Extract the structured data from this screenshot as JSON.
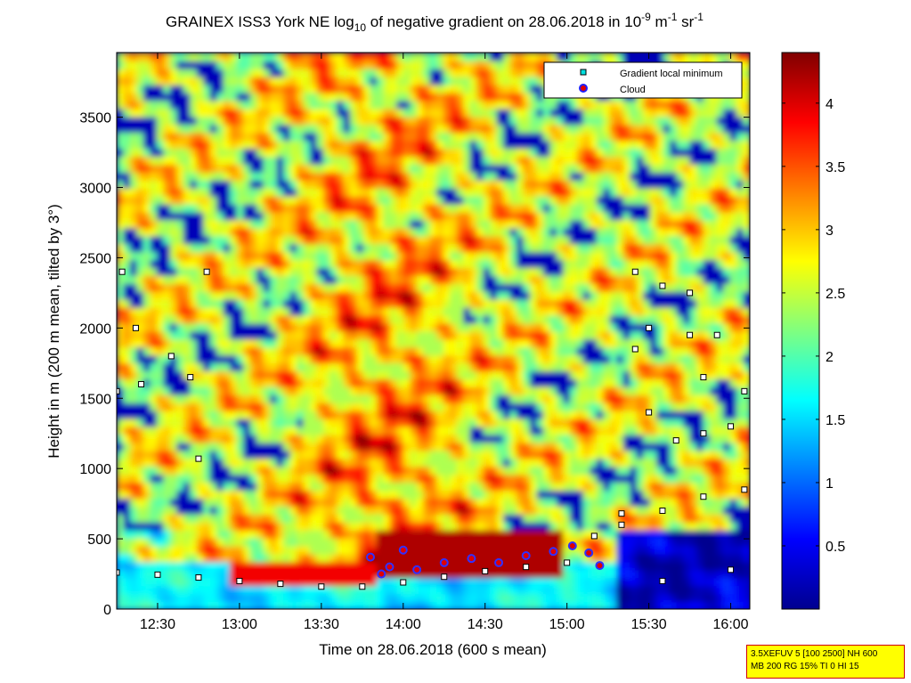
{
  "chart_data": {
    "type": "heatmap",
    "title": "GRAINEX ISS3 York NE log",
    "title_sub": "10",
    "title_mid": " of negative gradient on 28.06.2018 in 10",
    "title_exp1": "-9",
    "title_unit1": " m",
    "title_exp2": "-1",
    "title_unit2": " sr",
    "title_exp3": "-1",
    "xlabel": "Time on 28.06.2018 (600 s mean)",
    "ylabel": "Height in m (200 m mean, tilted by 3°)",
    "x_range": [
      "12:15",
      "16:07"
    ],
    "y_range": [
      0,
      3960
    ],
    "x_ticks": [
      "12:30",
      "13:00",
      "13:30",
      "14:00",
      "14:30",
      "15:00",
      "15:30",
      "16:00"
    ],
    "y_ticks": [
      0,
      500,
      1000,
      1500,
      2000,
      2500,
      3000,
      3500
    ],
    "colorbar": {
      "min": 0,
      "max": 4.4,
      "ticks": [
        0.5,
        1,
        1.5,
        2,
        2.5,
        3,
        3.5,
        4
      ]
    },
    "legend": {
      "placement": "top-right",
      "entries": [
        "Gradient local minimum",
        "Cloud"
      ]
    },
    "series": [
      {
        "name": "Gradient local minimum",
        "points": [
          [
            "12:15",
            260
          ],
          [
            "12:30",
            245
          ],
          [
            "12:45",
            225
          ],
          [
            "13:00",
            200
          ],
          [
            "13:15",
            180
          ],
          [
            "13:30",
            160
          ],
          [
            "13:45",
            160
          ],
          [
            "14:00",
            190
          ],
          [
            "14:15",
            230
          ],
          [
            "14:30",
            270
          ],
          [
            "14:45",
            300
          ],
          [
            "15:00",
            330
          ],
          [
            "15:10",
            520
          ],
          [
            "15:20",
            600
          ],
          [
            "15:35",
            700
          ],
          [
            "15:50",
            800
          ],
          [
            "16:05",
            850
          ],
          [
            "12:17",
            2400
          ],
          [
            "12:22",
            2000
          ],
          [
            "12:24",
            1600
          ],
          [
            "12:15",
            1550
          ],
          [
            "12:35",
            1800
          ],
          [
            "12:42",
            1650
          ],
          [
            "12:48",
            2400
          ],
          [
            "12:45",
            1070
          ],
          [
            "15:25",
            2400
          ],
          [
            "15:35",
            2300
          ],
          [
            "15:45",
            2250
          ],
          [
            "15:30",
            2000
          ],
          [
            "15:45",
            1950
          ],
          [
            "15:55",
            1950
          ],
          [
            "15:25",
            1850
          ],
          [
            "15:50",
            1650
          ],
          [
            "16:05",
            1550
          ],
          [
            "15:30",
            1400
          ],
          [
            "15:40",
            1200
          ],
          [
            "15:50",
            1250
          ],
          [
            "16:00",
            1300
          ],
          [
            "15:20",
            680
          ],
          [
            "15:35",
            200
          ],
          [
            "16:00",
            280
          ]
        ]
      },
      {
        "name": "Cloud",
        "points": [
          [
            "13:48",
            370
          ],
          [
            "13:52",
            250
          ],
          [
            "13:55",
            300
          ],
          [
            "14:00",
            420
          ],
          [
            "14:05",
            280
          ],
          [
            "14:15",
            330
          ],
          [
            "14:25",
            360
          ],
          [
            "14:35",
            330
          ],
          [
            "14:45",
            380
          ],
          [
            "14:55",
            410
          ],
          [
            "15:02",
            450
          ],
          [
            "15:08",
            400
          ],
          [
            "15:12",
            310
          ]
        ]
      }
    ],
    "info_lines": [
      "3.5XEFUV 5 [100 2500] NH 600",
      "MB 200 RG 15% TI 0 HI 15"
    ]
  }
}
